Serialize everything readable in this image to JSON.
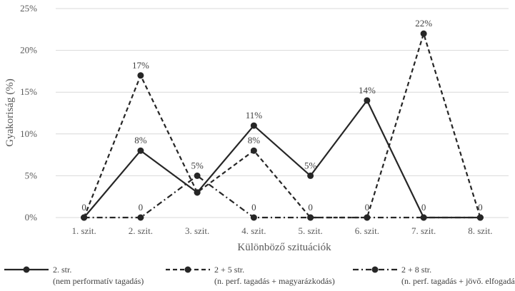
{
  "chart_data": {
    "type": "line",
    "xlabel": "Különböző szituációk",
    "ylabel": "Gyakoriság (%)",
    "ylim": [
      0,
      25
    ],
    "yticks": [
      "0%",
      "5%",
      "10%",
      "15%",
      "20%",
      "25%"
    ],
    "categories": [
      "1. szit.",
      "2. szit.",
      "3. szit.",
      "4. szit.",
      "5. szit.",
      "6. szit.",
      "7. szit.",
      "8. szit."
    ],
    "grid": "horizontal",
    "legend_position": "bottom",
    "series": [
      {
        "name": "2. str.",
        "subtitle": "(nem performatív tagadás)",
        "style": "solid",
        "values": [
          0,
          8,
          3,
          11,
          5,
          14,
          0,
          0
        ],
        "labels": [
          "0",
          "8%",
          "",
          "11%",
          "5%",
          "14%",
          "0",
          ""
        ]
      },
      {
        "name": "2 + 5 str.",
        "subtitle": "(n. perf. tagadás + magyarázkodás)",
        "style": "dashed",
        "values": [
          0,
          17,
          3,
          8,
          0,
          0,
          22,
          0
        ],
        "labels": [
          "",
          "17%",
          "",
          "8%",
          "0",
          "",
          "22%",
          "0"
        ]
      },
      {
        "name": "2 + 8 str.",
        "subtitle": "(n. perf. tagadás + jövő. elfogadás)",
        "style": "dashdot",
        "values": [
          0,
          0,
          5,
          0,
          0,
          0,
          0,
          0
        ],
        "labels": [
          "",
          "0",
          "5%",
          "0",
          "",
          "0",
          "",
          ""
        ]
      }
    ],
    "colors": {
      "line": "#262626",
      "grid": "#d9d9d9",
      "text": "#595959"
    }
  }
}
